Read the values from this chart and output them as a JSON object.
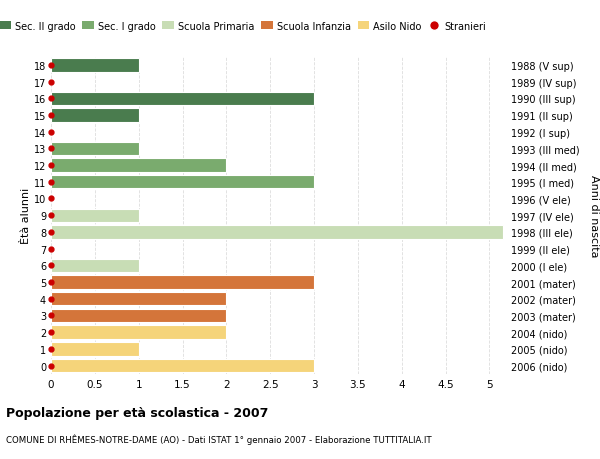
{
  "ages": [
    18,
    17,
    16,
    15,
    14,
    13,
    12,
    11,
    10,
    9,
    8,
    7,
    6,
    5,
    4,
    3,
    2,
    1,
    0
  ],
  "right_labels": [
    "1988 (V sup)",
    "1989 (IV sup)",
    "1990 (III sup)",
    "1991 (II sup)",
    "1992 (I sup)",
    "1993 (III med)",
    "1994 (II med)",
    "1995 (I med)",
    "1996 (V ele)",
    "1997 (IV ele)",
    "1998 (III ele)",
    "1999 (II ele)",
    "2000 (I ele)",
    "2001 (mater)",
    "2002 (mater)",
    "2003 (mater)",
    "2004 (nido)",
    "2005 (nido)",
    "2006 (nido)"
  ],
  "bars": [
    {
      "age": 18,
      "value": 1,
      "color": "#4a7c4e"
    },
    {
      "age": 17,
      "value": 0,
      "color": "#4a7c4e"
    },
    {
      "age": 16,
      "value": 3,
      "color": "#4a7c4e"
    },
    {
      "age": 15,
      "value": 1,
      "color": "#4a7c4e"
    },
    {
      "age": 14,
      "value": 0,
      "color": "#4a7c4e"
    },
    {
      "age": 13,
      "value": 1,
      "color": "#7aab6e"
    },
    {
      "age": 12,
      "value": 2,
      "color": "#7aab6e"
    },
    {
      "age": 11,
      "value": 3,
      "color": "#7aab6e"
    },
    {
      "age": 10,
      "value": 0,
      "color": "#c8ddb5"
    },
    {
      "age": 9,
      "value": 1,
      "color": "#c8ddb5"
    },
    {
      "age": 8,
      "value": 5.15,
      "color": "#c8ddb5"
    },
    {
      "age": 7,
      "value": 0,
      "color": "#c8ddb5"
    },
    {
      "age": 6,
      "value": 1,
      "color": "#c8ddb5"
    },
    {
      "age": 5,
      "value": 3,
      "color": "#d4753a"
    },
    {
      "age": 4,
      "value": 2,
      "color": "#d4753a"
    },
    {
      "age": 3,
      "value": 2,
      "color": "#d4753a"
    },
    {
      "age": 2,
      "value": 2,
      "color": "#f5d47a"
    },
    {
      "age": 1,
      "value": 1,
      "color": "#f5d47a"
    },
    {
      "age": 0,
      "value": 3,
      "color": "#f5d47a"
    }
  ],
  "stranieri_ages": [
    18,
    17,
    16,
    15,
    14,
    13,
    12,
    11,
    10,
    9,
    8,
    7,
    6,
    5,
    4,
    3,
    2,
    1,
    0
  ],
  "stranieri_marker_color": "#cc0000",
  "xlim": [
    0,
    5.2
  ],
  "xticks": [
    0,
    0.5,
    1.0,
    1.5,
    2.0,
    2.5,
    3.0,
    3.5,
    4.0,
    4.5,
    5.0
  ],
  "ylabel_left": "Ètà alunni",
  "ylabel_right": "Anni di nascita",
  "title": "Popolazione per età scolastica - 2007",
  "subtitle": "COMUNE DI RHÊMES-NOTRE-DAME (AO) - Dati ISTAT 1° gennaio 2007 - Elaborazione TUTTITALIA.IT",
  "legend_items": [
    {
      "label": "Sec. II grado",
      "color": "#4a7c4e",
      "type": "patch"
    },
    {
      "label": "Sec. I grado",
      "color": "#7aab6e",
      "type": "patch"
    },
    {
      "label": "Scuola Primaria",
      "color": "#c8ddb5",
      "type": "patch"
    },
    {
      "label": "Scuola Infanzia",
      "color": "#d4753a",
      "type": "patch"
    },
    {
      "label": "Asilo Nido",
      "color": "#f5d47a",
      "type": "patch"
    },
    {
      "label": "Stranieri",
      "color": "#cc0000",
      "type": "marker"
    }
  ],
  "bg_color": "#ffffff",
  "grid_color": "#dddddd",
  "bar_height": 0.8
}
